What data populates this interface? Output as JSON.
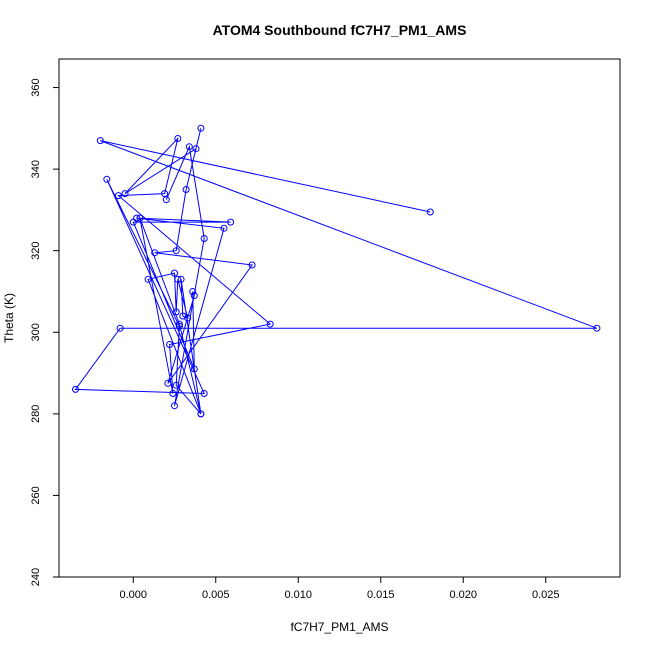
{
  "chart_data": {
    "type": "line",
    "title": "ATOM4 Southbound fC7H7_PM1_AMS",
    "xlabel": "fC7H7_PM1_AMS",
    "ylabel": "Theta (K)",
    "xlim": [
      -0.0045,
      0.0295
    ],
    "ylim": [
      240,
      367
    ],
    "xticks": [
      0.0,
      0.005,
      0.01,
      0.015,
      0.02,
      0.025
    ],
    "xtick_labels": [
      "0.000",
      "0.005",
      "0.010",
      "0.015",
      "0.020",
      "0.025"
    ],
    "yticks": [
      240,
      260,
      280,
      300,
      320,
      340,
      360
    ],
    "ytick_labels": [
      "240",
      "260",
      "280",
      "300",
      "320",
      "340",
      "360"
    ],
    "line_color": "#0000ff",
    "marker": "open-circle",
    "grid": false,
    "series": [
      {
        "x": [
          0.018,
          -0.002,
          0.0281,
          -0.0008,
          -0.0035,
          0.0043,
          -0.0016,
          0.0028,
          0.0026,
          0.0041,
          0.0009,
          0.0025,
          0.0026,
          0.0027,
          0.0033,
          0.003,
          0.0029,
          0.0041,
          0.0028,
          0.0004,
          0.0024,
          0.0022,
          0.0083,
          -0.0009,
          0.0019,
          0.0027,
          -0.0005,
          0.0038,
          0.0041,
          0.0032,
          0.0026,
          0.0013,
          0.0072,
          0.0021,
          0.0037,
          0.0036,
          0.0037,
          0.0,
          0.0059,
          0.0002,
          0.0055,
          0.0025,
          0.0043,
          0.0034,
          0.002
        ],
        "y": [
          329.5,
          347.0,
          301.0,
          301.0,
          286.0,
          285.0,
          337.5,
          301.5,
          287.0,
          280.0,
          313.0,
          314.5,
          305.0,
          313.0,
          303.5,
          304.0,
          313.0,
          280.0,
          302.0,
          328.0,
          285.0,
          297.0,
          302.0,
          333.5,
          334.0,
          347.5,
          334.0,
          345.0,
          350.0,
          335.0,
          320.0,
          319.5,
          316.5,
          287.5,
          309.0,
          310.0,
          291.0,
          327.0,
          327.0,
          328.0,
          325.5,
          282.0,
          323.0,
          345.5,
          332.5
        ]
      }
    ]
  }
}
